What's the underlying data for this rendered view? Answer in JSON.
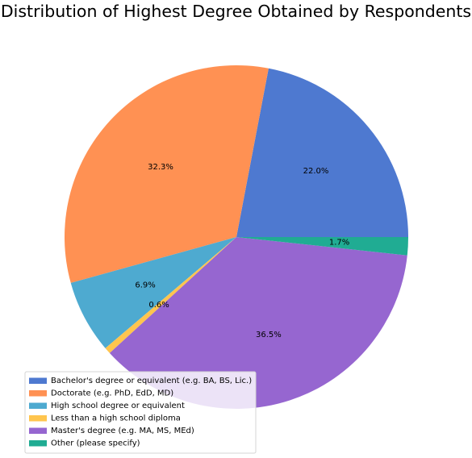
{
  "chart_data": {
    "type": "pie",
    "title": "Distribution of Highest Degree Obtained by Respondents",
    "slices": [
      {
        "label": "Bachelor's degree or equivalent (e.g. BA, BS, Lic.)",
        "value": 22.0,
        "pct_label": "22.0%",
        "color": "#4e79d0"
      },
      {
        "label": "Doctorate (e.g. PhD, EdD, MD)",
        "value": 32.3,
        "pct_label": "32.3%",
        "color": "#ff9153"
      },
      {
        "label": "High school degree or equivalent",
        "value": 6.9,
        "pct_label": "6.9%",
        "color": "#4eaad0"
      },
      {
        "label": "Less than a high school diploma",
        "value": 0.6,
        "pct_label": "0.6%",
        "color": "#ffc54e"
      },
      {
        "label": "Master's degree (e.g. MA, MS, MEd)",
        "value": 36.5,
        "pct_label": "36.5%",
        "color": "#9666d0"
      },
      {
        "label": "Other (please specify)",
        "value": 1.7,
        "pct_label": "1.7%",
        "color": "#20ac93"
      }
    ],
    "start_angle_deg": 0,
    "direction": "counterclockwise",
    "legend_position": "lower-left"
  }
}
